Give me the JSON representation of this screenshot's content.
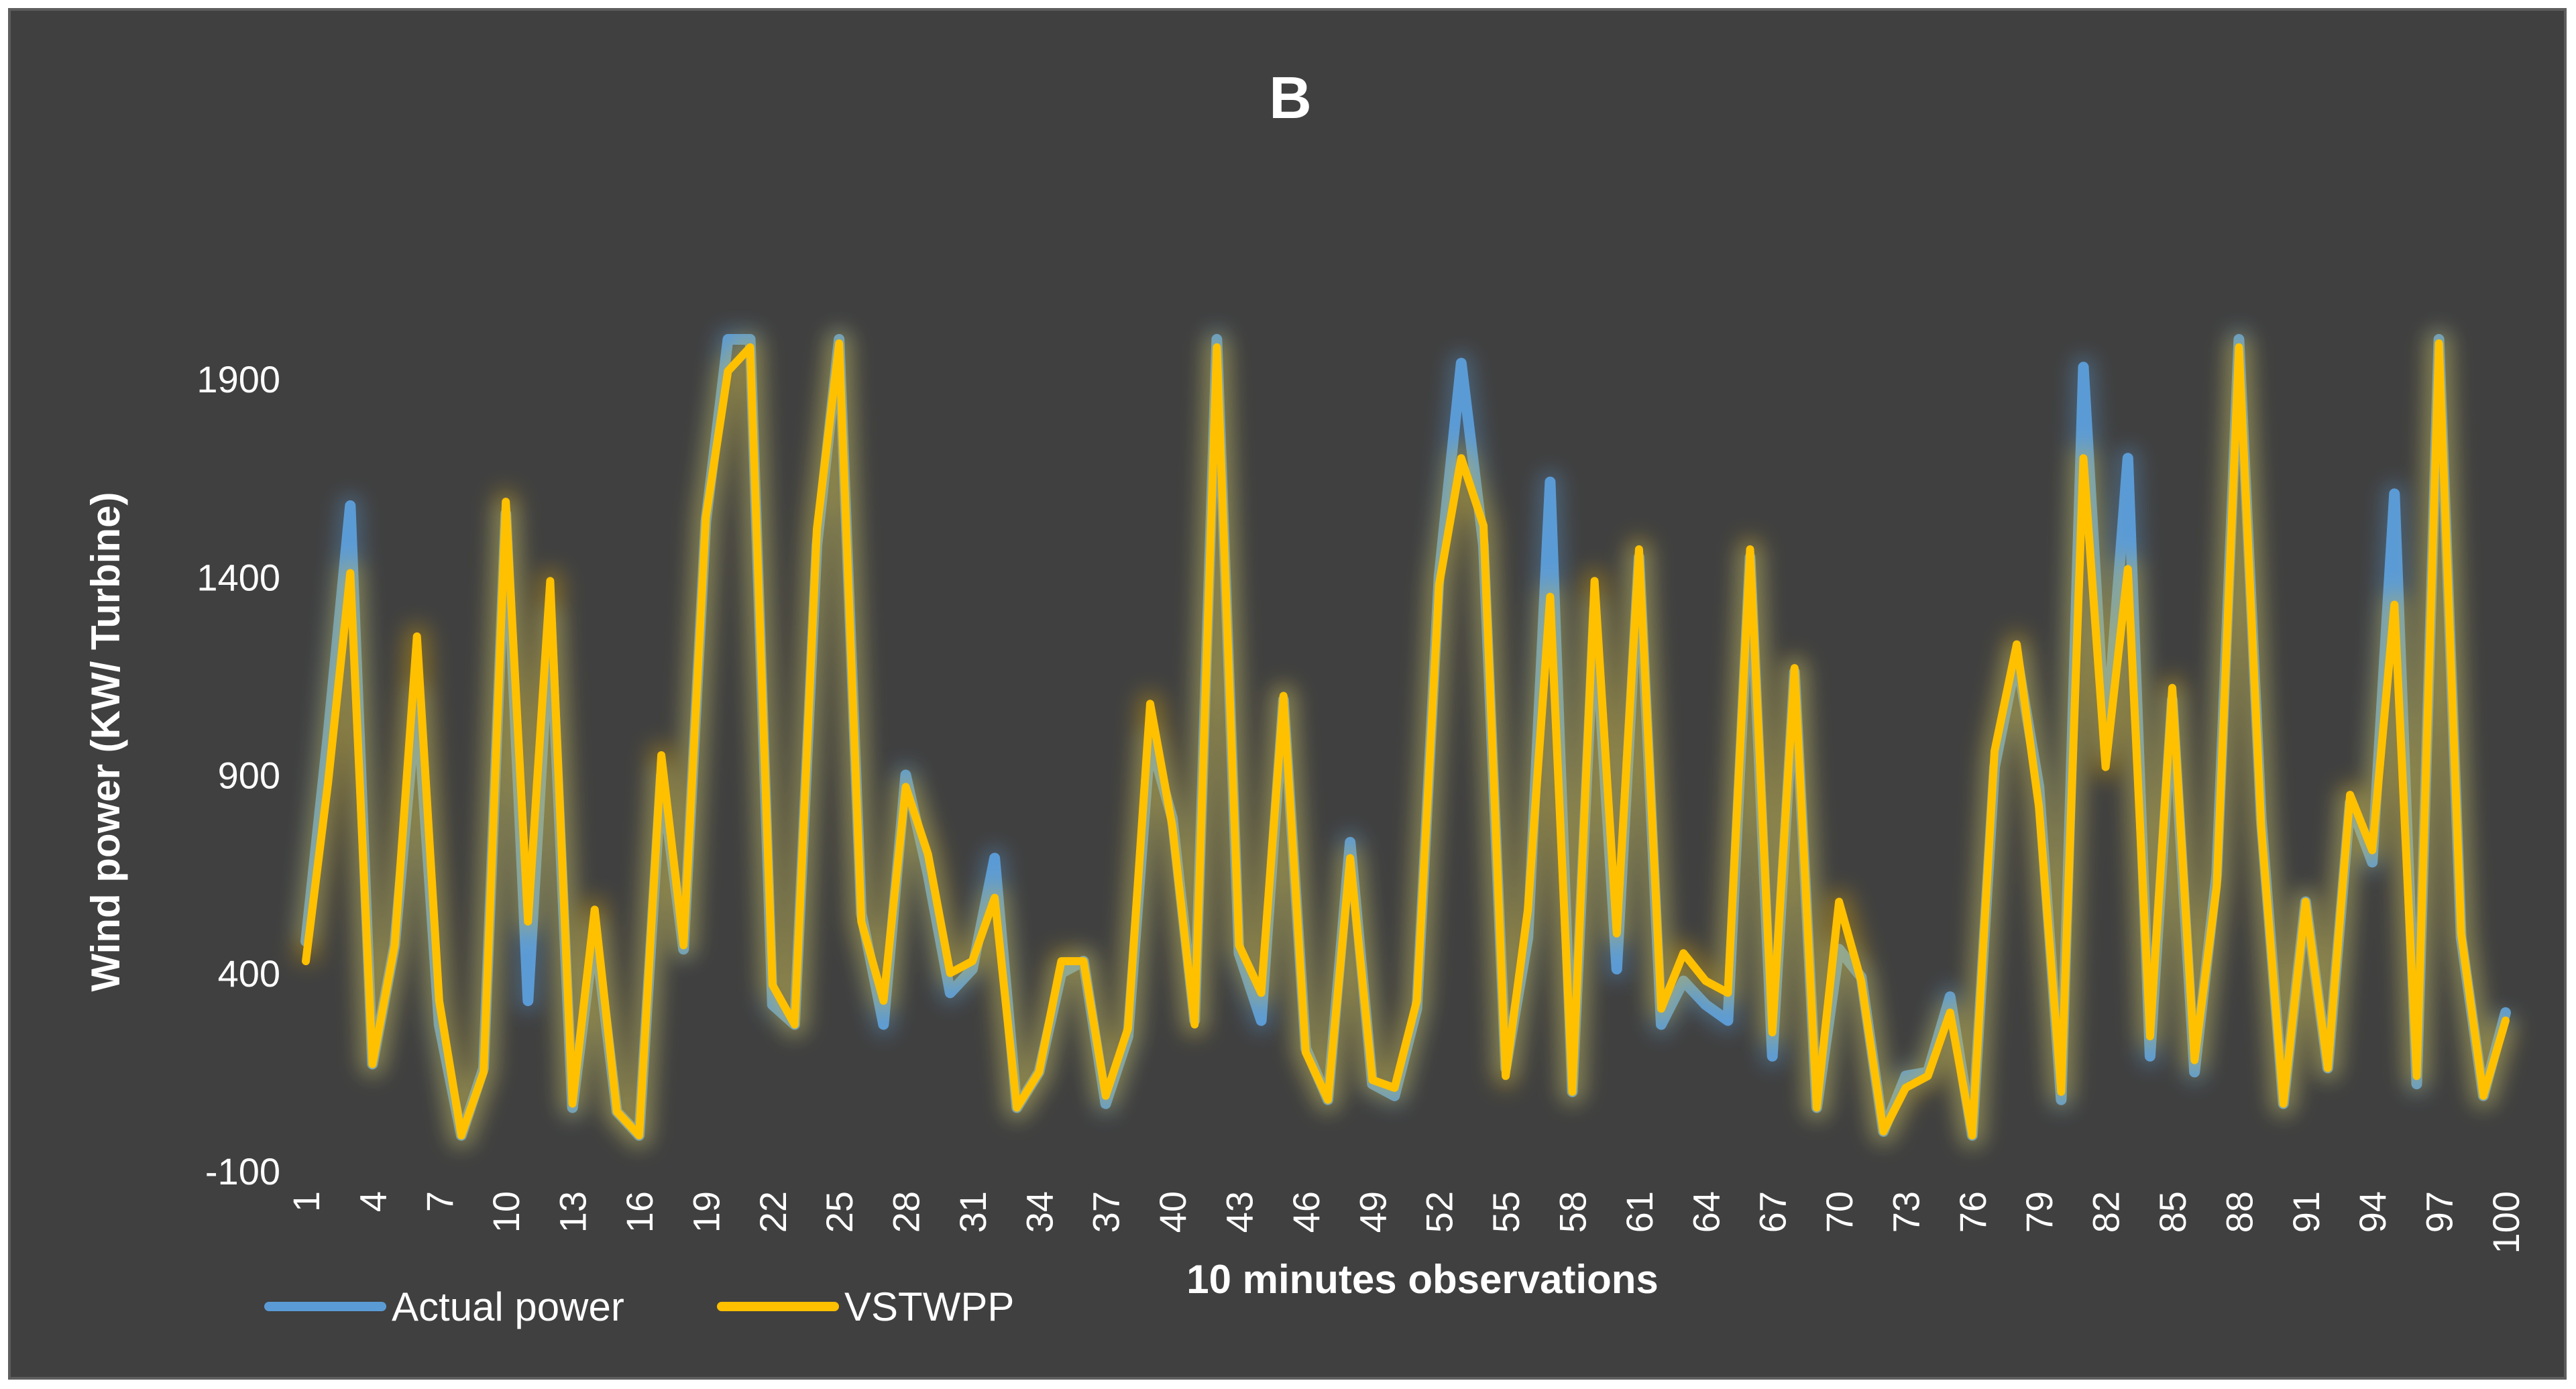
{
  "chart_data": {
    "type": "line",
    "title": "B",
    "xlabel": "10 minutes observations",
    "ylabel": "Wind power (KW/ Turbine)",
    "ylim": [
      -100,
      2100
    ],
    "yticks": [
      -100,
      400,
      900,
      1400,
      1900
    ],
    "x": [
      1,
      2,
      3,
      4,
      5,
      6,
      7,
      8,
      9,
      10,
      11,
      12,
      13,
      14,
      15,
      16,
      17,
      18,
      19,
      20,
      21,
      22,
      23,
      24,
      25,
      26,
      27,
      28,
      29,
      30,
      31,
      32,
      33,
      34,
      35,
      36,
      37,
      38,
      39,
      40,
      41,
      42,
      43,
      44,
      45,
      46,
      47,
      48,
      49,
      50,
      51,
      52,
      53,
      54,
      55,
      56,
      57,
      58,
      59,
      60,
      61,
      62,
      63,
      64,
      65,
      66,
      67,
      68,
      69,
      70,
      71,
      72,
      73,
      74,
      75,
      76,
      77,
      78,
      79,
      80,
      81,
      82,
      83,
      84,
      85,
      86,
      87,
      88,
      89,
      90,
      91,
      92,
      93,
      94,
      95,
      96,
      97,
      98,
      99,
      100
    ],
    "xtick_labels": [
      1,
      4,
      7,
      10,
      13,
      16,
      19,
      22,
      25,
      28,
      31,
      34,
      37,
      40,
      43,
      46,
      49,
      52,
      55,
      58,
      61,
      64,
      67,
      70,
      73,
      76,
      79,
      82,
      85,
      88,
      91,
      94,
      97,
      100
    ],
    "series": [
      {
        "name": "Actual power",
        "color": "#5b9bd5",
        "values": [
          480,
          1000,
          1580,
          170,
          470,
          1100,
          270,
          -10,
          160,
          1560,
          330,
          1300,
          60,
          510,
          50,
          -10,
          900,
          460,
          1540,
          2000,
          2000,
          320,
          270,
          1480,
          2000,
          550,
          270,
          900,
          650,
          350,
          410,
          690,
          60,
          150,
          400,
          430,
          70,
          240,
          990,
          790,
          280,
          2000,
          450,
          280,
          1090,
          210,
          80,
          730,
          120,
          90,
          310,
          1400,
          1940,
          1480,
          160,
          490,
          1640,
          100,
          1320,
          410,
          1450,
          270,
          380,
          320,
          280,
          1450,
          190,
          1160,
          60,
          460,
          390,
          0,
          140,
          150,
          340,
          -10,
          920,
          1200,
          870,
          80,
          1930,
          970,
          1700,
          190,
          1090,
          150,
          650,
          2000,
          790,
          70,
          580,
          160,
          830,
          680,
          1610,
          120,
          2000,
          490,
          90,
          300
        ]
      },
      {
        "name": "VSTWPP",
        "color": "#ffc000",
        "values": [
          430,
          880,
          1410,
          170,
          470,
          1250,
          330,
          -10,
          150,
          1590,
          530,
          1390,
          70,
          560,
          50,
          -10,
          950,
          470,
          1550,
          1920,
          1980,
          370,
          270,
          1520,
          1990,
          530,
          330,
          870,
          700,
          400,
          430,
          590,
          60,
          150,
          430,
          430,
          90,
          260,
          1080,
          770,
          270,
          1980,
          470,
          350,
          1100,
          200,
          80,
          690,
          130,
          110,
          330,
          1380,
          1700,
          1530,
          140,
          560,
          1350,
          100,
          1390,
          500,
          1470,
          310,
          450,
          380,
          350,
          1470,
          250,
          1170,
          60,
          580,
          380,
          0,
          110,
          140,
          300,
          -10,
          960,
          1230,
          820,
          100,
          1700,
          920,
          1420,
          240,
          1120,
          180,
          620,
          1980,
          770,
          70,
          580,
          160,
          850,
          710,
          1330,
          140,
          1990,
          500,
          90,
          280
        ]
      }
    ],
    "legend_position": "bottom-left"
  }
}
